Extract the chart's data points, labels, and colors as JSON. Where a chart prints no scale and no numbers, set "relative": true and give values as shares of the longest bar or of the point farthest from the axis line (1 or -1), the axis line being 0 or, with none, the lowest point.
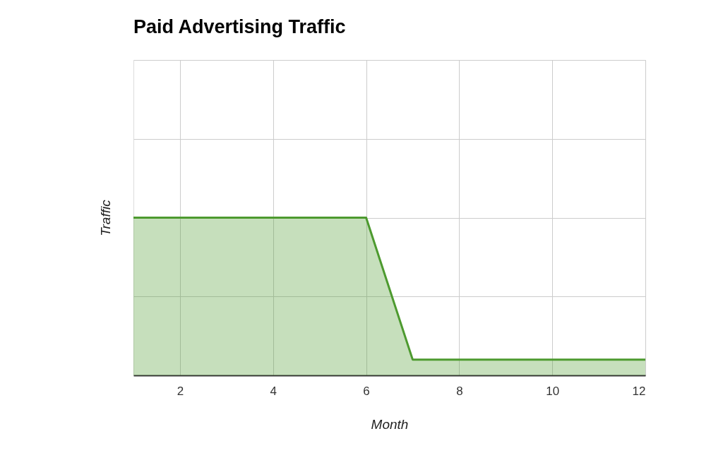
{
  "chart_data": {
    "type": "area",
    "title": "Paid Advertising Traffic",
    "xlabel": "Month",
    "ylabel": "Traffic",
    "x": [
      1,
      2,
      3,
      4,
      5,
      6,
      7,
      8,
      9,
      10,
      11,
      12
    ],
    "series": [
      {
        "color": "#4d9a2f",
        "values": [
          1,
          1,
          1,
          1,
          1,
          1,
          0.1,
          0.1,
          0.1,
          0.1,
          0.1,
          0.1
        ]
      }
    ],
    "relative": true,
    "xlim": [
      1,
      12
    ],
    "xticks": [
      2,
      4,
      6,
      8,
      10,
      12
    ],
    "grid": true
  }
}
